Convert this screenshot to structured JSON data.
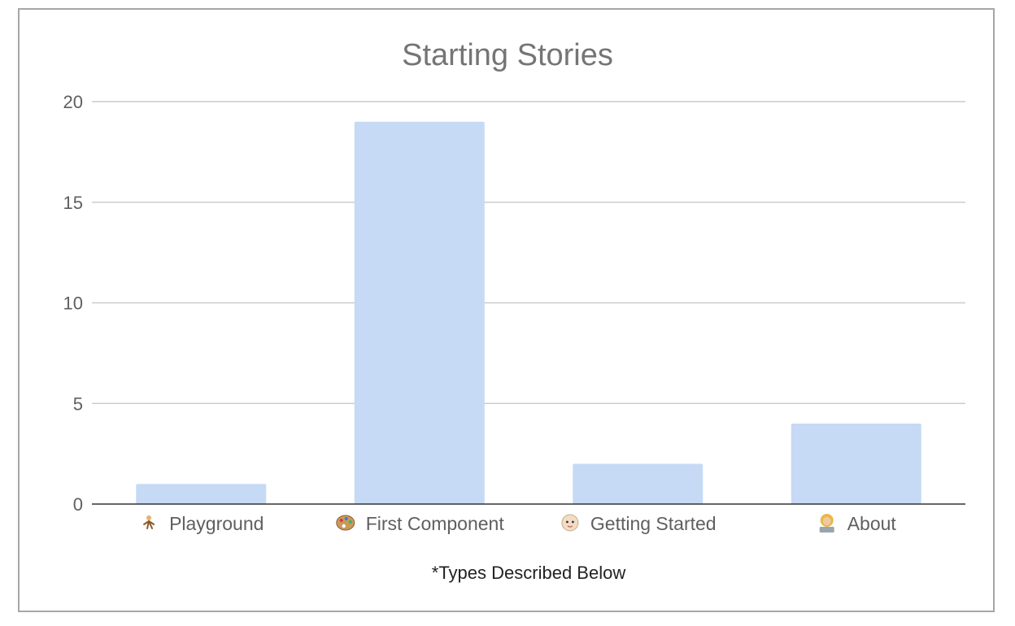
{
  "chart_data": {
    "type": "bar",
    "title": "Starting Stories",
    "xlabel": "*Types Described Below",
    "ylabel": "",
    "categories": [
      "Playground",
      "First Component",
      "Getting Started",
      "About"
    ],
    "category_icons": [
      "person-cartwheeling-icon",
      "artist-palette-icon",
      "baby-face-icon",
      "woman-technologist-icon"
    ],
    "values": [
      1,
      19,
      2,
      4
    ],
    "ylim": [
      0,
      20
    ],
    "yticks": [
      "0",
      "5",
      "10",
      "15",
      "20"
    ],
    "grid": true,
    "legend": "none",
    "colors": {
      "bar": "#c6d9f5",
      "grid": "#cccccc",
      "axis": "#333333"
    }
  }
}
